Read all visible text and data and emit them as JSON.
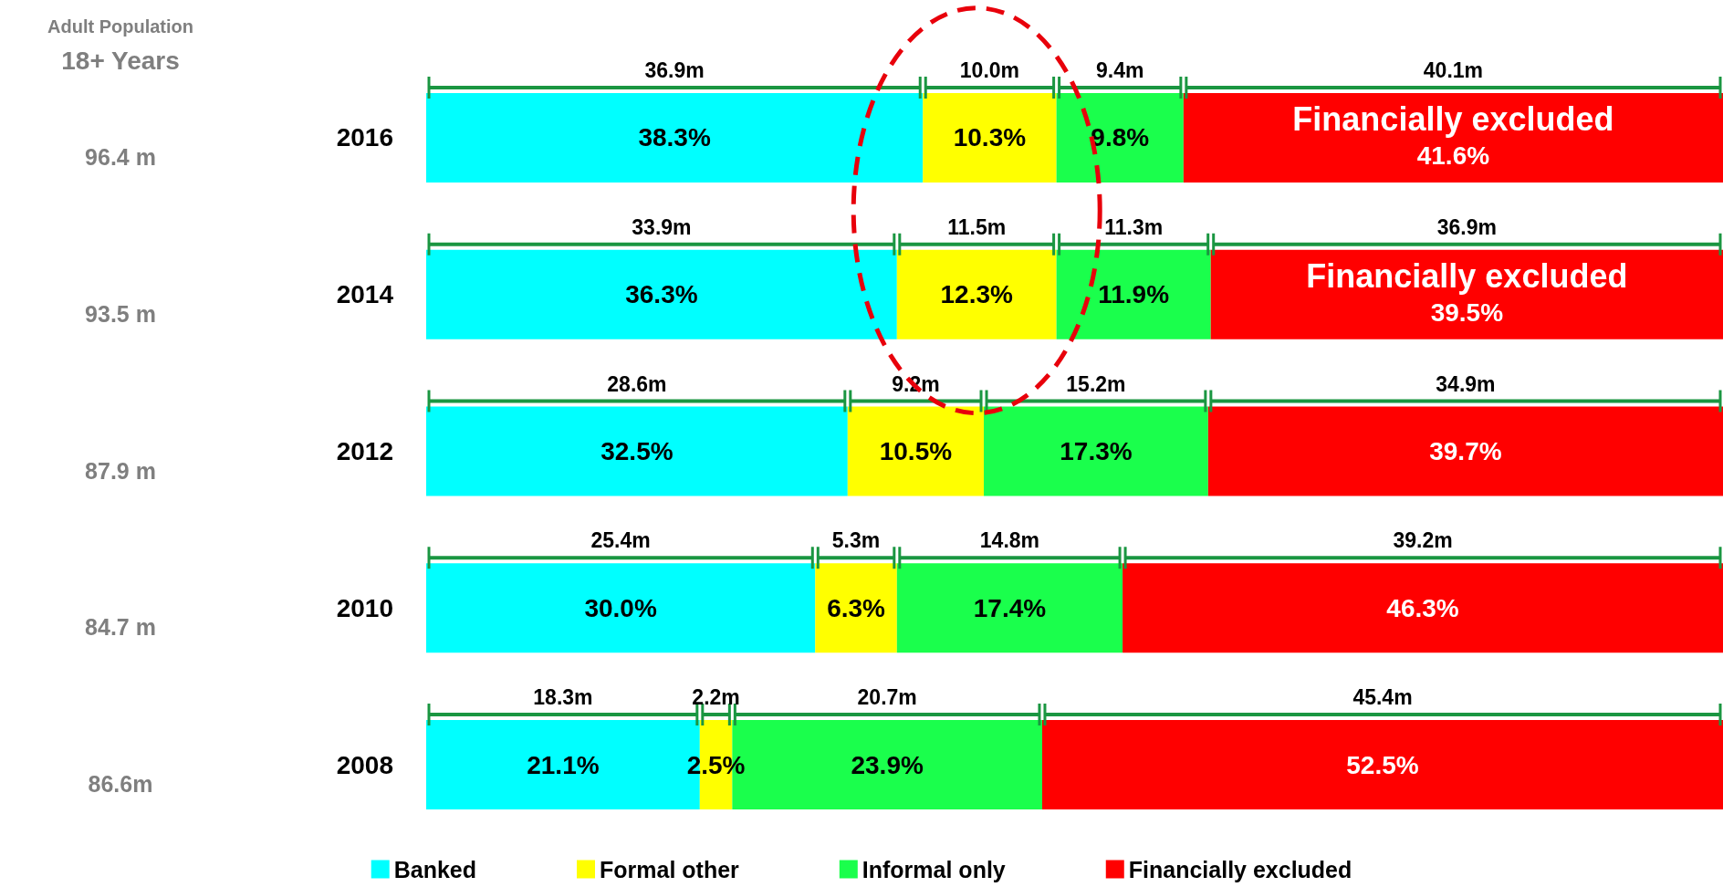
{
  "chart_data": {
    "type": "bar",
    "orientation": "horizontal",
    "stacked": true,
    "legend": "bottom",
    "tick_labels": "y",
    "xlim": [
      0,
      100
    ],
    "categories": [
      "2016",
      "2014",
      "2012",
      "2010",
      "2008"
    ],
    "series": [
      {
        "name": "Banked",
        "color": "#00ffff",
        "values": [
          38.3,
          36.3,
          32.5,
          30.0,
          21.1
        ],
        "value_labels": [
          "38.3%",
          "36.3%",
          "32.5%",
          "30.0%",
          "21.1%"
        ]
      },
      {
        "name": "Formal other",
        "color": "#ffff00",
        "values": [
          10.3,
          12.3,
          10.5,
          6.3,
          2.5
        ],
        "value_labels": [
          "10.3%",
          "12.3%",
          "10.5%",
          "6.3%",
          "2.5%"
        ]
      },
      {
        "name": "Informal only",
        "color": "#1aff4c",
        "values": [
          9.8,
          11.9,
          17.3,
          17.4,
          23.9
        ],
        "value_labels": [
          "9.8%",
          "11.9%",
          "17.3%",
          "17.4%",
          "23.9%"
        ]
      },
      {
        "name": "Financially excluded",
        "color": "#ff0000",
        "values": [
          41.6,
          39.5,
          39.7,
          46.3,
          52.5
        ],
        "value_labels": [
          "41.6%",
          "39.5%",
          "39.7%",
          "46.3%",
          "52.5%"
        ]
      }
    ],
    "annotations": [
      "Adult Population",
      "18+ Years",
      "96.4 m",
      "93.5 m",
      "87.9 m",
      "84.7 m",
      "86.6m",
      "36.9m",
      "10.0m",
      "9.4m",
      "40.1m",
      "33.9m",
      "11.5m",
      "11.3m",
      "36.9m",
      "28.6m",
      "9.2m",
      "15.2m",
      "34.9m",
      "25.4m",
      "5.3m",
      "14.8m",
      "39.2m",
      "18.3m",
      "2.2m",
      "20.7m",
      "45.4m",
      "Financially excluded",
      "Financially excluded"
    ]
  }
}
